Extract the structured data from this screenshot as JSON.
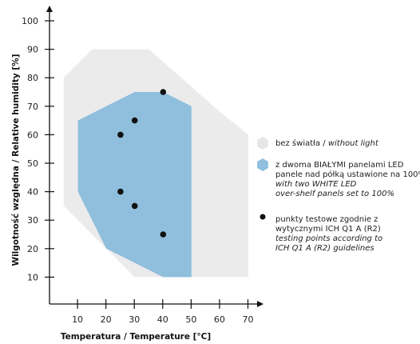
{
  "chart_data": {
    "type": "area",
    "xlabel": "Temperatura / Temperature [°C]",
    "ylabel": "Wilgotność względna / Relative humidity [%]",
    "xlim": [
      0,
      70
    ],
    "ylim": [
      0,
      100
    ],
    "x_ticks": [
      "10",
      "20",
      "30",
      "40",
      "50",
      "60",
      "70"
    ],
    "y_ticks": [
      "10",
      "20",
      "30",
      "40",
      "50",
      "60",
      "70",
      "80",
      "90",
      "100"
    ],
    "grid": false,
    "legend_position": "right",
    "regions": [
      {
        "legend_key": "without_light",
        "color": "#ebebeb",
        "points": [
          [
            5,
            80
          ],
          [
            15,
            90
          ],
          [
            35,
            90
          ],
          [
            60,
            68
          ],
          [
            70,
            60
          ],
          [
            70,
            10
          ],
          [
            35,
            10
          ],
          [
            30,
            10
          ],
          [
            5,
            35
          ]
        ]
      },
      {
        "legend_key": "white_led",
        "color": "#8fbfdc",
        "points": [
          [
            10,
            65
          ],
          [
            20,
            70
          ],
          [
            30,
            75
          ],
          [
            35,
            75
          ],
          [
            40,
            75
          ],
          [
            50,
            70
          ],
          [
            50,
            10
          ],
          [
            40,
            10
          ],
          [
            20,
            20
          ],
          [
            10,
            40
          ]
        ]
      }
    ],
    "test_points": {
      "legend_key": "test_points",
      "color": "#111111",
      "points": [
        [
          25,
          60
        ],
        [
          30,
          65
        ],
        [
          40,
          75
        ],
        [
          25,
          40
        ],
        [
          30,
          35
        ],
        [
          40,
          25
        ]
      ]
    },
    "legend": [
      {
        "key": "without_light",
        "marker": "hexagon",
        "color": "#e6e6e6",
        "lines": [
          {
            "text": "bez światła / ",
            "italic_suffix": "without light"
          }
        ]
      },
      {
        "key": "white_led",
        "marker": "hexagon",
        "color": "#8fbfdc",
        "lines": [
          {
            "text": "z dwoma BIAŁYMI panelami LED",
            "italic_suffix": ""
          },
          {
            "text": " panele nad półką ustawione na 100%",
            "italic_suffix": ""
          },
          {
            "text": "",
            "italic_suffix": "with two WHITE LED"
          },
          {
            "text": "",
            "italic_suffix": "over-shelf panels set to 100%"
          }
        ]
      },
      {
        "key": "test_points",
        "marker": "dot",
        "color": "#111111",
        "lines": [
          {
            "text": "punkty testowe zgodnie z",
            "italic_suffix": ""
          },
          {
            "text": "wytycznymi ICH Q1 A (R2)",
            "italic_suffix": ""
          },
          {
            "text": "",
            "italic_suffix": "testing points according to"
          },
          {
            "text": "",
            "italic_suffix": "ICH Q1 A (R2) guidelines"
          }
        ]
      }
    ]
  }
}
